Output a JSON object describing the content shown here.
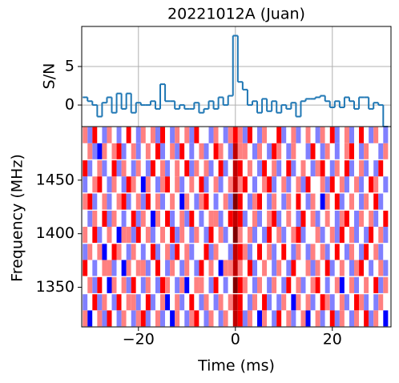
{
  "chart_data": [
    {
      "type": "step",
      "title": "20221012A (Juan)",
      "ylabel": "S/N",
      "color": "#1f77b4",
      "grid": true,
      "x": [
        -31,
        -30,
        -29,
        -28,
        -27,
        -26,
        -25,
        -24,
        -23,
        -22,
        -21,
        -20,
        -19,
        -18,
        -17,
        -16,
        -15,
        -14,
        -13,
        -12,
        -11,
        -10,
        -9,
        -8,
        -7,
        -6,
        -5,
        -4,
        -3,
        -2,
        -1,
        0,
        1,
        2,
        3,
        4,
        5,
        6,
        7,
        8,
        9,
        10,
        11,
        12,
        13,
        14,
        15,
        16,
        17,
        18,
        19,
        20,
        21,
        22,
        23,
        24,
        25,
        26,
        27,
        28,
        29,
        30,
        31
      ],
      "values": [
        1,
        0.5,
        0,
        -1.5,
        0.3,
        1,
        -1,
        1.5,
        -0.5,
        1.5,
        -1,
        0.3,
        0,
        0,
        0.5,
        -0.5,
        2.7,
        0.5,
        0.5,
        -0.5,
        0,
        -0.5,
        -0.5,
        0.3,
        -1,
        -0.5,
        0.5,
        -0.5,
        1,
        0,
        1.2,
        9,
        3,
        2,
        0,
        0.5,
        -1,
        0.8,
        -0.8,
        0.5,
        -1,
        0,
        -0.5,
        0.3,
        -1.5,
        0.5,
        0.8,
        0.8,
        1,
        1.2,
        0.5,
        -0.3,
        0.5,
        -0.3,
        1,
        0.5,
        -0.5,
        1,
        1,
        -0.5,
        0.3,
        0,
        -2.8
      ],
      "xlim": [
        -31.7,
        32.1
      ],
      "ylim": [
        -2.8,
        10.2
      ],
      "xticks": [
        -20,
        0,
        20
      ],
      "yticks": [
        0,
        5
      ]
    },
    {
      "type": "heatmap",
      "xlabel": "Time (ms)",
      "ylabel": "Frequency (MHz)",
      "cmap": "seismic",
      "clim": [
        -4,
        4
      ],
      "x": [
        -31,
        -30,
        -29,
        -28,
        -27,
        -26,
        -25,
        -24,
        -23,
        -22,
        -21,
        -20,
        -19,
        -18,
        -17,
        -16,
        -15,
        -14,
        -13,
        -12,
        -11,
        -10,
        -9,
        -8,
        -7,
        -6,
        -5,
        -4,
        -3,
        -2,
        -1,
        0,
        1,
        2,
        3,
        4,
        5,
        6,
        7,
        8,
        9,
        10,
        11,
        12,
        13,
        14,
        15,
        16,
        17,
        18,
        19,
        20,
        21,
        22,
        23,
        24,
        25,
        26,
        27,
        28,
        29,
        30,
        31
      ],
      "y": [
        1321,
        1336,
        1352,
        1368,
        1383,
        1399,
        1414,
        1430,
        1446,
        1461,
        1477,
        1492
      ],
      "z": [
        [
          1,
          -2,
          0,
          1,
          -1,
          2,
          0,
          -1,
          1,
          0,
          -1,
          1,
          2,
          -1,
          0,
          1,
          -1,
          0,
          -2,
          1,
          0,
          -1,
          1,
          2,
          0,
          -1,
          1,
          0,
          -1,
          1,
          0,
          3,
          2,
          -1,
          1,
          0,
          -2,
          1,
          0,
          -1,
          2,
          0,
          1,
          -1,
          0,
          1,
          -2,
          0,
          1,
          -1,
          0,
          2,
          -1,
          1,
          0,
          -1,
          1,
          0,
          2,
          -1,
          1,
          0,
          -2
        ],
        [
          -1,
          0,
          2,
          -1,
          1,
          0,
          -1,
          2,
          0,
          1,
          1,
          -1,
          0,
          2,
          -1,
          0,
          1,
          -2,
          0,
          1,
          -1,
          0,
          2,
          0,
          -1,
          1,
          0,
          -1,
          1,
          0,
          1,
          3,
          2,
          0,
          -1,
          1,
          0,
          2,
          -1,
          0,
          -1,
          1,
          0,
          -2,
          1,
          0,
          1,
          -1,
          0,
          2,
          1,
          -1,
          0,
          1,
          -1,
          0,
          2,
          1,
          -1,
          0,
          -1,
          1,
          0
        ],
        [
          0,
          1,
          -1,
          2,
          0,
          -2,
          1,
          0,
          1,
          -1,
          2,
          0,
          -1,
          1,
          0,
          -1,
          2,
          1,
          0,
          -1,
          1,
          -2,
          0,
          1,
          1,
          0,
          -1,
          2,
          0,
          -1,
          0,
          4,
          2,
          1,
          0,
          -1,
          1,
          0,
          -1,
          1,
          0,
          -1,
          2,
          0,
          1,
          -1,
          0,
          1,
          2,
          0,
          -1,
          0,
          1,
          -2,
          0,
          1,
          -1,
          0,
          1,
          0,
          2,
          -1,
          1
        ],
        [
          2,
          0,
          -1,
          0,
          1,
          1,
          -1,
          0,
          -2,
          1,
          0,
          1,
          1,
          -1,
          0,
          2,
          0,
          -1,
          1,
          0,
          -1,
          1,
          0,
          -1,
          2,
          0,
          1,
          0,
          -2,
          1,
          1,
          3,
          1,
          0,
          2,
          -1,
          0,
          1,
          0,
          -1,
          1,
          0,
          -1,
          2,
          0,
          0,
          1,
          -1,
          1,
          0,
          2,
          -1,
          0,
          1,
          0,
          -1,
          1,
          2,
          0,
          -1,
          0,
          1,
          -1
        ],
        [
          -1,
          1,
          0,
          1,
          -2,
          0,
          2,
          1,
          0,
          -1,
          1,
          0,
          -1,
          0,
          2,
          -1,
          0,
          1,
          -1,
          2,
          0,
          1,
          -1,
          0,
          0,
          2,
          -1,
          1,
          0,
          0,
          -1,
          3,
          2,
          1,
          -1,
          0,
          2,
          0,
          1,
          -1,
          0,
          2,
          0,
          -1,
          1,
          0,
          -1,
          1,
          0,
          1,
          -1,
          0,
          2,
          0,
          -1,
          1,
          0,
          -1,
          2,
          0,
          1,
          -1,
          0
        ],
        [
          1,
          0,
          2,
          -1,
          0,
          1,
          0,
          -2,
          1,
          1,
          -1,
          2,
          0,
          1,
          -1,
          0,
          1,
          0,
          2,
          -1,
          1,
          0,
          -1,
          1,
          0,
          -1,
          2,
          0,
          1,
          -1,
          0,
          4,
          1,
          0,
          1,
          -1,
          0,
          -1,
          2,
          0,
          1,
          -1,
          0,
          1,
          2,
          -1,
          0,
          0,
          1,
          -1,
          0,
          1,
          -1,
          2,
          0,
          1,
          -1,
          0,
          -1,
          2,
          0,
          1,
          -1
        ],
        [
          0,
          -1,
          1,
          0,
          2,
          -1,
          1,
          0,
          -1,
          0,
          2,
          -1,
          1,
          0,
          -2,
          1,
          0,
          2,
          -1,
          0,
          1,
          -1,
          2,
          0,
          -1,
          0,
          1,
          1,
          -1,
          0,
          2,
          3,
          2,
          -1,
          0,
          1,
          -1,
          0,
          1,
          2,
          -1,
          0,
          1,
          0,
          -1,
          2,
          0,
          1,
          -1,
          0,
          1,
          0,
          -1,
          1,
          2,
          0,
          -1,
          1,
          0,
          1,
          -1,
          0,
          2
        ],
        [
          1,
          2,
          -1,
          0,
          1,
          -1,
          0,
          1,
          2,
          -1,
          0,
          1,
          -1,
          2,
          0,
          1,
          -1,
          0,
          1,
          0,
          -2,
          1,
          0,
          -1,
          1,
          2,
          0,
          -1,
          0,
          1,
          -1,
          4,
          2,
          0,
          -1,
          1,
          2,
          0,
          -1,
          1,
          0,
          -1,
          1,
          0,
          2,
          0,
          -1,
          1,
          0,
          -2,
          1,
          0,
          2,
          -1,
          0,
          1,
          0,
          -1,
          1,
          0,
          2,
          -1,
          0
        ],
        [
          -1,
          0,
          1,
          2,
          0,
          -1,
          1,
          0,
          -1,
          2,
          1,
          0,
          -2,
          1,
          0,
          -1,
          1,
          2,
          0,
          1,
          -1,
          0,
          1,
          0,
          2,
          -1,
          0,
          1,
          -1,
          0,
          1,
          3,
          1,
          2,
          0,
          -1,
          0,
          1,
          2,
          -1,
          0,
          1,
          -1,
          0,
          1,
          -1,
          2,
          0,
          0,
          1,
          -1,
          2,
          0,
          1,
          -1,
          0,
          1,
          -1,
          0,
          2,
          1,
          0,
          -1
        ],
        [
          2,
          -1,
          0,
          1,
          -1,
          0,
          2,
          -1,
          1,
          0,
          -1,
          1,
          0,
          -1,
          2,
          0,
          1,
          -1,
          0,
          1,
          0,
          2,
          -1,
          1,
          0,
          1,
          -1,
          0,
          2,
          -1,
          0,
          3,
          2,
          0,
          1,
          0,
          -1,
          2,
          0,
          1,
          -1,
          0,
          2,
          -1,
          0,
          1,
          0,
          -1,
          1,
          2,
          0,
          -1,
          1,
          0,
          2,
          -1,
          0,
          1,
          -1,
          0,
          -1,
          2,
          0
        ],
        [
          0,
          1,
          -1,
          -2,
          1,
          0,
          1,
          2,
          -1,
          0,
          1,
          -1,
          0,
          1,
          0,
          2,
          -1,
          0,
          1,
          -1,
          2,
          0,
          -1,
          0,
          1,
          -1,
          0,
          2,
          1,
          0,
          -1,
          3,
          1,
          1,
          0,
          -1,
          1,
          0,
          -1,
          2,
          1,
          0,
          -1,
          1,
          0,
          0,
          -1,
          2,
          0,
          -1,
          1,
          0,
          -1,
          0,
          1,
          2,
          0,
          -1,
          1,
          0,
          0,
          -1,
          1
        ],
        [
          1,
          -1,
          2,
          0,
          -1,
          1,
          0,
          -1,
          0,
          2,
          0,
          -1,
          1,
          0,
          1,
          -1,
          2,
          0,
          -1,
          1,
          0,
          1,
          -1,
          2,
          0,
          0,
          -1,
          1,
          0,
          -1,
          1,
          2,
          1,
          -1,
          2,
          0,
          -1,
          1,
          0,
          0,
          2,
          -1,
          0,
          1,
          -1,
          0,
          1,
          0,
          -1,
          1,
          0,
          2,
          -1,
          0,
          1,
          -1,
          0,
          2,
          0,
          -1,
          1,
          0,
          -1
        ]
      ],
      "xlim": [
        -31.7,
        32.1
      ],
      "ylim": [
        1313,
        1500
      ],
      "xticks": [
        {
          "value": -20,
          "label": "−20"
        },
        0,
        20
      ],
      "yticks": [
        1350,
        1400,
        1450
      ]
    }
  ]
}
